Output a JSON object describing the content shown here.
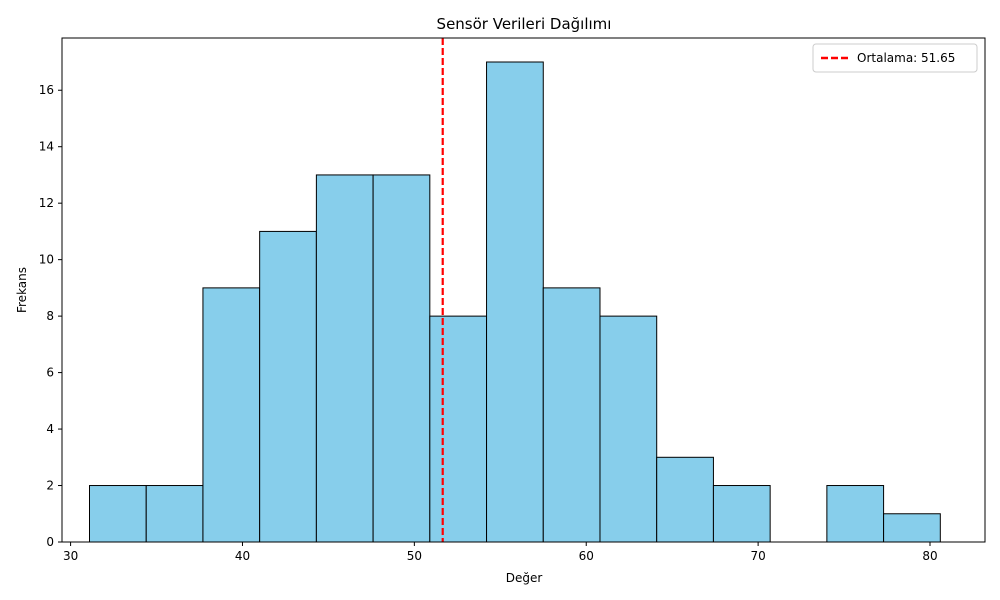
{
  "chart_data": {
    "type": "bar",
    "subtype": "histogram",
    "title": "Sensör Verileri Dağılımı",
    "xlabel": "Değer",
    "ylabel": "Frekans",
    "xlim": [
      29.5,
      83.2
    ],
    "ylim": [
      0,
      17.85
    ],
    "xticks": [
      30,
      40,
      50,
      60,
      70,
      80
    ],
    "yticks": [
      0,
      2,
      4,
      6,
      8,
      10,
      12,
      14,
      16
    ],
    "bins": [
      {
        "x0": 31.1,
        "x1": 34.4,
        "count": 2
      },
      {
        "x0": 34.4,
        "x1": 37.7,
        "count": 2
      },
      {
        "x0": 37.7,
        "x1": 41.0,
        "count": 9
      },
      {
        "x0": 41.0,
        "x1": 44.3,
        "count": 11
      },
      {
        "x0": 44.3,
        "x1": 47.6,
        "count": 13
      },
      {
        "x0": 47.6,
        "x1": 50.9,
        "count": 13
      },
      {
        "x0": 50.9,
        "x1": 54.2,
        "count": 8
      },
      {
        "x0": 54.2,
        "x1": 57.5,
        "count": 17
      },
      {
        "x0": 57.5,
        "x1": 60.8,
        "count": 9
      },
      {
        "x0": 60.8,
        "x1": 64.1,
        "count": 8
      },
      {
        "x0": 64.1,
        "x1": 67.4,
        "count": 3
      },
      {
        "x0": 67.4,
        "x1": 70.7,
        "count": 2
      },
      {
        "x0": 70.7,
        "x1": 74.0,
        "count": 0
      },
      {
        "x0": 74.0,
        "x1": 77.3,
        "count": 2
      },
      {
        "x0": 77.3,
        "x1": 80.6,
        "count": 1
      }
    ],
    "mean_line": {
      "value": 51.65,
      "label": "Ortalama: 51.65",
      "color": "#ff0000",
      "style": "dashed"
    },
    "bar_color": "#87ceeb",
    "edge_color": "#000000",
    "grid": false,
    "legend": {
      "placement": "top-right",
      "entries": [
        "Ortalama: 51.65"
      ]
    }
  }
}
